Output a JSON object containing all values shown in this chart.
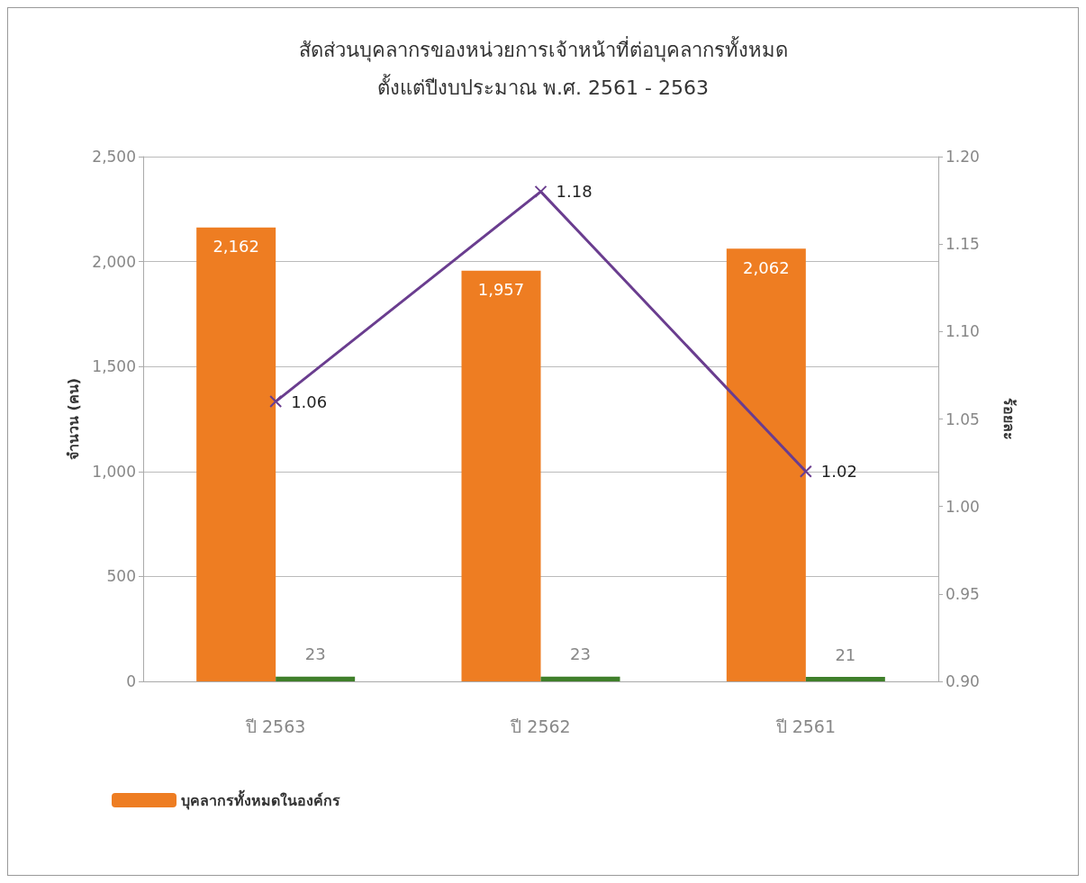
{
  "chart_data": {
    "type": "bar",
    "title": "สัดส่วนบุคลากรของหน่วยการเจ้าหน้าที่ต่อบุคลากรทั้งหมด",
    "subtitle": "ตั้งแต่ปีงบประมาณ พ.ศ. 2561 - 2563",
    "ylabel": "จำนวน (คน)",
    "y2label": "ร้อยละ",
    "categories": [
      "ปี 2563",
      "ปี 2562",
      "ปี 2561"
    ],
    "series": [
      {
        "name": "บุคลากรทั้งหมดในองค์กร",
        "color": "#ee7d22",
        "values": [
          2162,
          1957,
          2062
        ],
        "value_labels": [
          "2,162",
          "1,957",
          "2,062"
        ]
      },
      {
        "color": "#3f7f2a",
        "values": [
          23,
          23,
          21
        ]
      },
      {
        "type": "line",
        "axis": "y2",
        "color": "#6a3d8f",
        "marker": "cross",
        "values": [
          1.06,
          1.18,
          1.02
        ]
      }
    ],
    "ylim": [
      0,
      2500
    ],
    "yticks": [
      0,
      500,
      {
        "value": 1000,
        "label": "1,000"
      },
      {
        "value": 1500,
        "label": "1,500"
      },
      {
        "value": 2000,
        "label": "2,000"
      },
      {
        "value": 2500,
        "label": "2,500"
      }
    ],
    "y2lim": [
      0.9,
      1.2
    ],
    "y2ticks": [
      {
        "value": 0.9,
        "label": "0.90"
      },
      {
        "value": 0.95,
        "label": "0.95"
      },
      {
        "value": 1.0,
        "label": "1.00"
      },
      {
        "value": 1.05,
        "label": "1.05"
      },
      {
        "value": 1.1,
        "label": "1.10"
      },
      {
        "value": 1.15,
        "label": "1.15"
      },
      {
        "value": 1.2,
        "label": "1.20"
      }
    ],
    "data_labels": true,
    "grid": "y",
    "legend": "bottom left"
  }
}
